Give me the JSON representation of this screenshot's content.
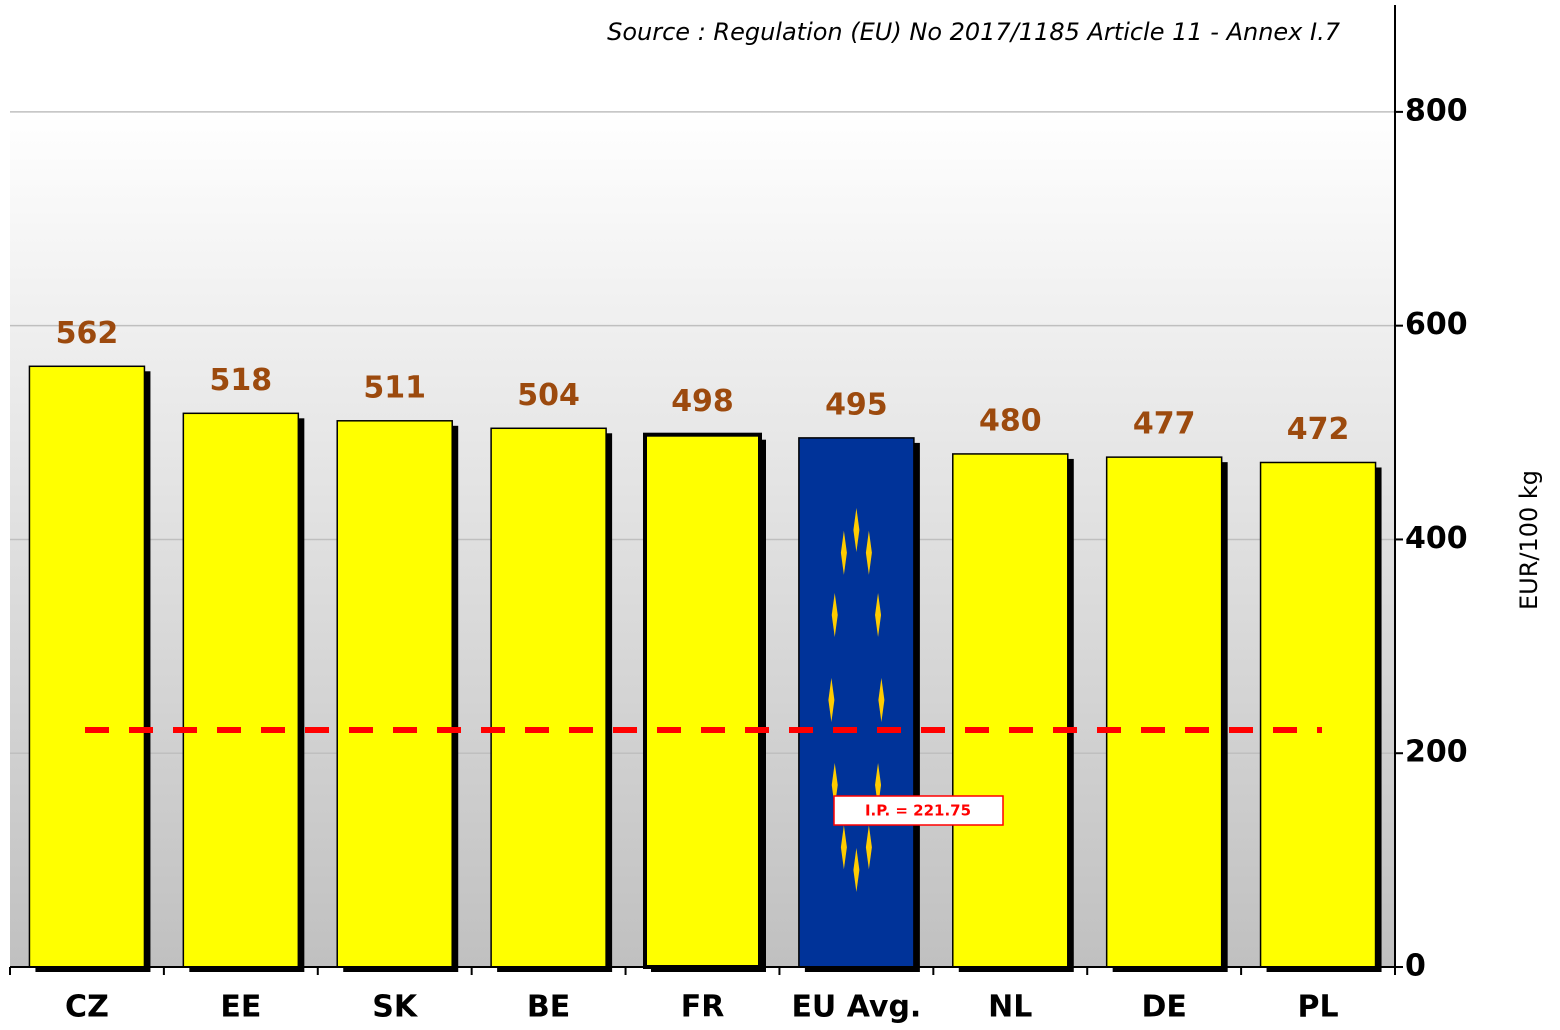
{
  "chart_data": {
    "type": "bar",
    "source": "Source : Regulation (EU) No 2017/1185 Article 11 - Annex I.7",
    "y_label": "EUR/100 kg",
    "categories": [
      "CZ",
      "EE",
      "SK",
      "BE",
      "FR",
      "EU Avg.",
      "NL",
      "DE",
      "PL"
    ],
    "values": [
      562,
      518,
      511,
      504,
      498,
      495,
      480,
      477,
      472
    ],
    "colors": [
      "#ffff00",
      "#ffff00",
      "#ffff00",
      "#ffff00",
      "#ffff00",
      "#003399",
      "#ffff00",
      "#ffff00",
      "#ffff00"
    ],
    "value_label_color": "#9c4a0e",
    "ylim": [
      0,
      900
    ],
    "yticks": [
      0,
      200,
      400,
      600,
      800
    ],
    "grid": true,
    "y_axis_side": "right",
    "reference_line": {
      "value": 221.75,
      "label": "I.P. = 221.75",
      "color": "#ff0000"
    }
  }
}
